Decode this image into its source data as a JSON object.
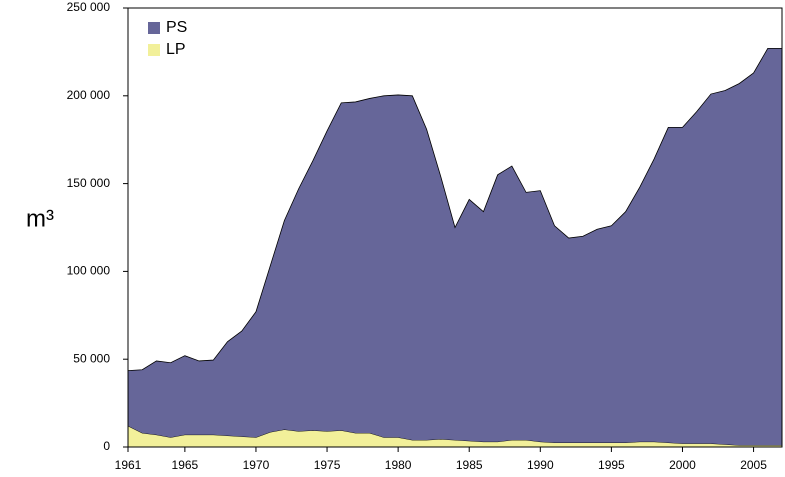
{
  "chart_data": {
    "type": "stacked_area",
    "y_label": "m³",
    "x": [
      1961,
      1962,
      1963,
      1964,
      1965,
      1966,
      1967,
      1968,
      1969,
      1970,
      1971,
      1972,
      1973,
      1974,
      1975,
      1976,
      1977,
      1978,
      1979,
      1980,
      1981,
      1982,
      1983,
      1984,
      1985,
      1986,
      1987,
      1988,
      1989,
      1990,
      1991,
      1992,
      1993,
      1994,
      1995,
      1996,
      1997,
      1998,
      1999,
      2000,
      2001,
      2002,
      2003,
      2004,
      2005,
      2006,
      2007
    ],
    "series": [
      {
        "name": "LP",
        "color": "#f2f09a",
        "values": [
          12000,
          8000,
          7000,
          5500,
          7000,
          7000,
          7000,
          6500,
          6000,
          5500,
          8500,
          10000,
          9000,
          9500,
          9000,
          9500,
          8000,
          8000,
          5500,
          5500,
          4000,
          4000,
          4500,
          4000,
          3500,
          3000,
          3000,
          4000,
          4000,
          3000,
          2500,
          2500,
          2500,
          2500,
          2500,
          2500,
          3000,
          3000,
          2500,
          2000,
          2000,
          2000,
          1500,
          1000,
          1000,
          1000,
          1000
        ]
      },
      {
        "name": "PS",
        "color": "#666699",
        "values": [
          31500,
          36000,
          42000,
          42500,
          45000,
          42000,
          42500,
          53500,
          60000,
          71500,
          94500,
          119000,
          138000,
          153500,
          171000,
          186500,
          188500,
          190500,
          194500,
          195000,
          196000,
          177000,
          149500,
          121000,
          137500,
          131000,
          152000,
          156000,
          141000,
          143000,
          123500,
          116500,
          117500,
          121500,
          123500,
          131500,
          145000,
          161000,
          179500,
          180000,
          189000,
          199000,
          201500,
          206000,
          212000,
          226000,
          226000
        ]
      }
    ],
    "legend_order": [
      1,
      0
    ],
    "legend_position": "upper left",
    "xlim": [
      1961,
      2007
    ],
    "xticks": [
      1961,
      1965,
      1970,
      1975,
      1980,
      1985,
      1990,
      1995,
      2000,
      2005
    ],
    "ylim": [
      0,
      250000
    ],
    "yticks": [
      0,
      {
        "value": 50000,
        "label": "50 000"
      },
      {
        "value": 100000,
        "label": "100 000"
      },
      {
        "value": 150000,
        "label": "150 000"
      },
      {
        "value": 200000,
        "label": "200 000"
      },
      {
        "value": 250000,
        "label": "250 000"
      }
    ],
    "grid": false
  }
}
